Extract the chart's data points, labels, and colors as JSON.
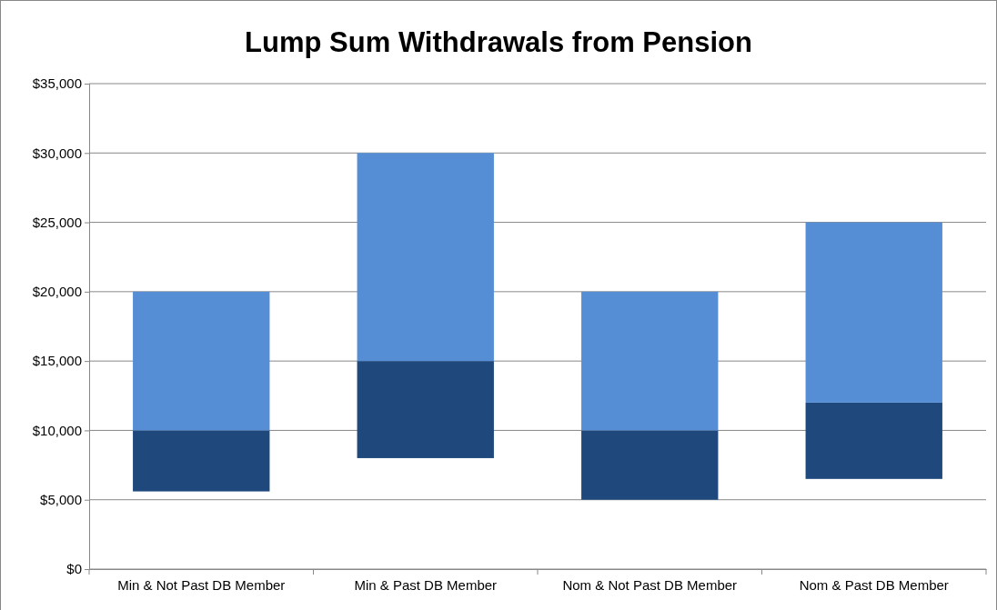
{
  "chart_data": {
    "type": "bar",
    "title": "Lump Sum Withdrawals from Pension",
    "categories": [
      "Min & Not Past DB Member",
      "Min & Past DB Member",
      "Nom & Not Past DB Member",
      "Nom & Past DB Member"
    ],
    "series": [
      {
        "color": "#1f497d",
        "base": [
          5600,
          8000,
          5000,
          6500
        ],
        "values": [
          4400,
          7000,
          5000,
          5500
        ]
      },
      {
        "color": "#558ed5",
        "base": [
          10000,
          15000,
          10000,
          12000
        ],
        "values": [
          10000,
          15000,
          10000,
          13000
        ]
      }
    ],
    "ylim": [
      0,
      35000
    ],
    "yticks": [
      {
        "value": 0,
        "label": "$0"
      },
      {
        "value": 5000,
        "label": "$5,000"
      },
      {
        "value": 10000,
        "label": "$10,000"
      },
      {
        "value": 15000,
        "label": "$15,000"
      },
      {
        "value": 20000,
        "label": "$20,000"
      },
      {
        "value": 25000,
        "label": "$25,000"
      },
      {
        "value": 30000,
        "label": "$30,000"
      },
      {
        "value": 35000,
        "label": "$35,000"
      }
    ],
    "grid": "y"
  }
}
